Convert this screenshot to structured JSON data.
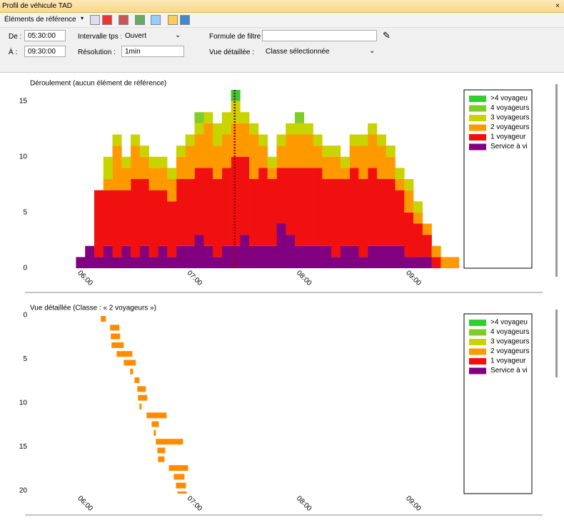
{
  "window": {
    "title": "Profil de véhicule TAD"
  },
  "toolbar": {
    "reference": "Éléments de référence"
  },
  "filters": {
    "from_label": "De :",
    "from_value": "05:30:00",
    "to_label": "À :",
    "to_value": "09:30:00",
    "interval_label": "Intervalle tps :",
    "interval_value": "Ouvert",
    "resolution_label": "Résolution :",
    "resolution_value": "1min",
    "formula_label": "Formule de filtre :",
    "view_label": "Vue détaillée :",
    "view_value": "Classe sélectionnée"
  },
  "chart_data": [
    {
      "type": "histogram",
      "title": "Déroulement (aucun élément de référence)",
      "bins": [
        355,
        360,
        365,
        370,
        375,
        380,
        385,
        390,
        395,
        400,
        405,
        410,
        415,
        420,
        425,
        430,
        435,
        440,
        445,
        450,
        455,
        460,
        465,
        470,
        475,
        480,
        485,
        490,
        495,
        500,
        505,
        510,
        515,
        520,
        525,
        530,
        535,
        540,
        545,
        550,
        555,
        560,
        565
      ],
      "series": [
        {
          "name": ">4 voyageu",
          "color": "#33cc33",
          "values": [
            0,
            0,
            0,
            0,
            0,
            0,
            0,
            0,
            0,
            0,
            0,
            0,
            0,
            0,
            0,
            0,
            0,
            1,
            0,
            0,
            0,
            0,
            0,
            0,
            0,
            0,
            0,
            0,
            0,
            0,
            0,
            0,
            0,
            0,
            0,
            0,
            0,
            0,
            0,
            0,
            0,
            0
          ]
        },
        {
          "name": "4 voyageurs",
          "color": "#80cc28",
          "values": [
            0,
            0,
            0,
            0,
            0,
            0,
            0,
            0,
            0,
            0,
            0,
            0,
            0,
            1,
            0,
            0,
            0,
            0,
            0,
            0,
            0,
            0,
            0,
            0,
            1,
            0,
            0,
            0,
            0,
            0,
            0,
            0,
            0,
            0,
            0,
            0,
            0,
            0,
            0,
            0,
            0,
            0
          ]
        },
        {
          "name": "3 voyageurs",
          "color": "#c8d400",
          "values": [
            0,
            0,
            0,
            2,
            1,
            1,
            1,
            1,
            1,
            1,
            1,
            1,
            1,
            1,
            1,
            2,
            2,
            2,
            1,
            1,
            1,
            1,
            1,
            1,
            1,
            1,
            1,
            1,
            1,
            1,
            1,
            1,
            1,
            1,
            1,
            1,
            1,
            1,
            0,
            0,
            0,
            0
          ]
        },
        {
          "name": "2 voyageurs",
          "color": "#ff9900",
          "values": [
            0,
            0,
            0,
            1,
            4,
            2,
            3,
            2,
            2,
            2,
            2,
            2,
            3,
            3,
            4,
            3,
            3,
            3,
            3,
            4,
            2,
            1,
            2,
            3,
            3,
            3,
            2,
            2,
            2,
            1,
            2,
            3,
            3,
            3,
            2,
            1,
            2,
            1,
            1,
            1,
            1,
            1
          ]
        },
        {
          "name": "1 voyageur",
          "color": "#f01010",
          "values": [
            0,
            0,
            6,
            5,
            6,
            5,
            7,
            6,
            6,
            5,
            5,
            6,
            6,
            6,
            7,
            7,
            7,
            8,
            7,
            6,
            7,
            6,
            5,
            6,
            7,
            7,
            7,
            6,
            7,
            6,
            7,
            7,
            7,
            6,
            6,
            5,
            4,
            3,
            2,
            1,
            0,
            0
          ]
        },
        {
          "name": "Service à vi",
          "color": "#800080",
          "values": [
            1,
            2,
            1,
            2,
            1,
            2,
            1,
            2,
            1,
            2,
            1,
            2,
            2,
            3,
            2,
            1,
            2,
            2,
            3,
            2,
            2,
            2,
            4,
            3,
            2,
            2,
            2,
            2,
            1,
            2,
            2,
            1,
            2,
            2,
            2,
            2,
            1,
            1,
            1,
            0,
            0,
            0
          ]
        }
      ],
      "cursor_x": 442,
      "cursor_color": "#a00000",
      "xlim": [
        329,
        567
      ],
      "ylim": [
        0,
        16
      ],
      "xticks": [
        {
          "value": 360,
          "label": "06:00"
        },
        {
          "value": 420,
          "label": "07:00"
        },
        {
          "value": 480,
          "label": "08:00"
        },
        {
          "value": 540,
          "label": "09:00"
        }
      ],
      "yticks": [
        0,
        5,
        10,
        15
      ]
    },
    {
      "type": "range_bar",
      "title": "Vue détaillée (Classe : « 2 voyageurs »)",
      "color": "#ff8c00",
      "y": [
        0,
        1,
        2,
        3,
        4,
        5,
        6,
        7,
        8,
        9,
        10,
        11,
        12,
        13,
        14,
        15,
        16,
        17,
        18,
        19,
        20
      ],
      "start": [
        368.6,
        373.7,
        374.1,
        374.5,
        377.3,
        381.2,
        384.7,
        387.1,
        388.6,
        389,
        389.8,
        393.7,
        396.5,
        397.6,
        398.8,
        399.6,
        400,
        405.9,
        408.6,
        409.8,
        410.6
      ],
      "end": [
        371.4,
        378.8,
        379.2,
        381.2,
        385.9,
        387.8,
        386.3,
        389.8,
        393.3,
        394.1,
        391,
        404.7,
        400.4,
        398.8,
        413.7,
        403.9,
        403.5,
        416.5,
        414.5,
        415.3,
        415.7
      ],
      "legend": [
        {
          "name": ">4 voyageu",
          "color": "#33cc33"
        },
        {
          "name": "4 voyageurs",
          "color": "#80cc28"
        },
        {
          "name": "3 voyageurs",
          "color": "#c8d400"
        },
        {
          "name": "2 voyageurs",
          "color": "#ff9900"
        },
        {
          "name": "1 voyageur",
          "color": "#f01010"
        },
        {
          "name": "Service à vi",
          "color": "#800080"
        }
      ],
      "xlim": [
        329,
        567
      ],
      "ylim": [
        20,
        0
      ],
      "xticks": [
        {
          "value": 360,
          "label": "06:00"
        },
        {
          "value": 420,
          "label": "07:00"
        },
        {
          "value": 480,
          "label": "08:00"
        },
        {
          "value": 540,
          "label": "09:00"
        }
      ],
      "yticks": [
        0,
        5,
        10,
        15,
        20
      ]
    }
  ]
}
